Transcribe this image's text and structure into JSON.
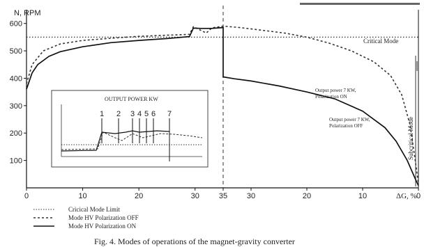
{
  "chart_data": {
    "type": "line",
    "title": "",
    "caption": "Fig. 4. Modes of operations of the magnet-gravity converter",
    "ylabel": "N, RPM",
    "xlabel": "ΔG, %",
    "ylim": [
      0,
      650
    ],
    "y_ticks": [
      100,
      200,
      300,
      400,
      500,
      600
    ],
    "x_ticks_left": [
      0,
      10,
      20,
      30,
      35
    ],
    "x_ticks_right": [
      30,
      20,
      10,
      0
    ],
    "critical_mode_label": "Critical Mode",
    "subcritical_mode_label": "Subcritical Mode",
    "annotation_on": "Output power 7 KW,\nPolarization ON",
    "annotation_off": "Output power 7 KW,\nPolarization OFF",
    "legend": [
      {
        "style": "dotted",
        "label": "Cricical Mode Limit"
      },
      {
        "style": "dashed",
        "label": "Mode HV Polarization OFF"
      },
      {
        "style": "solid",
        "label": "Mode HV Polarization ON"
      }
    ],
    "series": [
      {
        "name": "Cricical Mode Limit",
        "style": "dotted",
        "points": [
          [
            0,
            550
          ],
          [
            35,
            550
          ],
          [
            30,
            550
          ],
          [
            20,
            550
          ],
          [
            10,
            550
          ],
          [
            0,
            550
          ]
        ]
      },
      {
        "name": "Mode HV Polarization OFF",
        "style": "dashed",
        "points": [
          [
            0,
            380
          ],
          [
            1,
            450
          ],
          [
            3,
            500
          ],
          [
            6,
            525
          ],
          [
            10,
            538
          ],
          [
            15,
            546
          ],
          [
            20,
            553
          ],
          [
            25,
            557
          ],
          [
            29,
            560
          ],
          [
            29.7,
            588
          ],
          [
            31,
            575
          ],
          [
            32,
            565
          ],
          [
            33,
            584
          ],
          [
            35,
            590
          ],
          [
            32,
            585
          ],
          [
            28,
            575
          ],
          [
            24,
            565
          ],
          [
            20,
            550
          ],
          [
            16,
            528
          ],
          [
            12,
            500
          ],
          [
            8,
            460
          ],
          [
            5,
            410
          ],
          [
            3,
            340
          ],
          [
            1.5,
            230
          ],
          [
            0.5,
            90
          ],
          [
            0,
            15
          ]
        ]
      },
      {
        "name": "Mode HV Polarization ON",
        "style": "solid",
        "points": [
          [
            0,
            360
          ],
          [
            1,
            420
          ],
          [
            2,
            450
          ],
          [
            4,
            480
          ],
          [
            6,
            497
          ],
          [
            10,
            515
          ],
          [
            15,
            530
          ],
          [
            20,
            538
          ],
          [
            25,
            545
          ],
          [
            29,
            552
          ],
          [
            29.7,
            583
          ],
          [
            31,
            582
          ],
          [
            33,
            582
          ],
          [
            35,
            585
          ],
          [
            35,
            405
          ],
          [
            33,
            398
          ],
          [
            30,
            390
          ],
          [
            25,
            372
          ],
          [
            20,
            350
          ],
          [
            15,
            325
          ],
          [
            10,
            280
          ],
          [
            6,
            220
          ],
          [
            4,
            170
          ],
          [
            2,
            100
          ],
          [
            0.5,
            30
          ],
          [
            0,
            8
          ]
        ]
      }
    ],
    "inset": {
      "title": "OUTPUT POWER KW",
      "markers": [
        "1",
        "2",
        "3",
        "4",
        "5",
        "6",
        "7"
      ]
    }
  }
}
